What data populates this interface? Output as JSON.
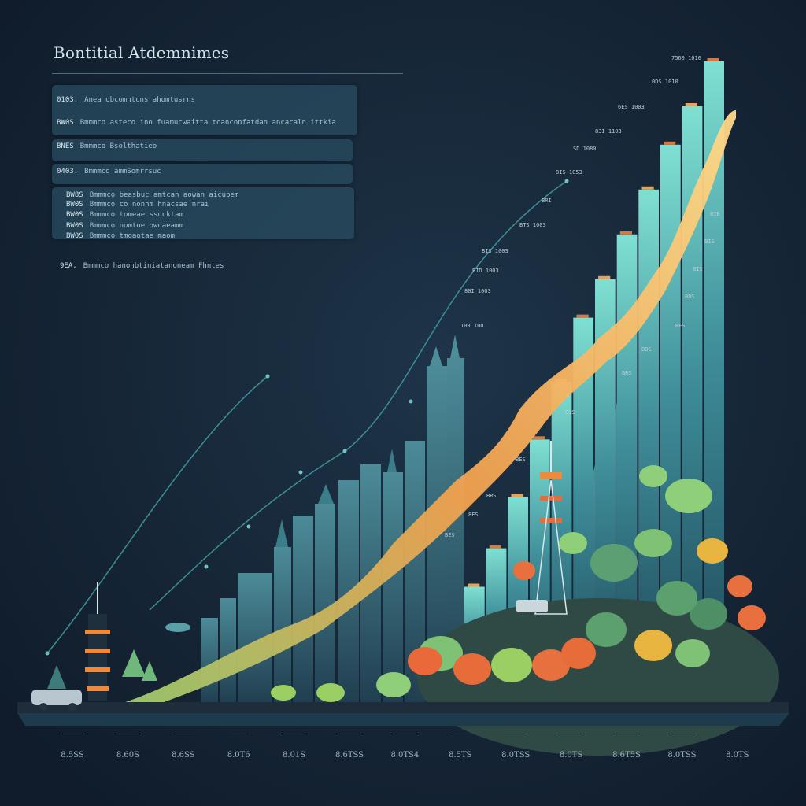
{
  "title": "Bontitial Atdemnimes",
  "panel_lines": [
    {
      "code": "0103.",
      "text": "Anea obcomntcns  ahomtusrns"
    },
    {
      "code": "BW0S",
      "text": "Bmmmco asteco ino fuamucwaitta toanconfatdan ancacaln ittkia"
    },
    {
      "code": "BNES",
      "text": "Bmmmco  Bsolthatieo"
    },
    {
      "code": "0403.",
      "text": "Bmmmco ammSomrrsuc"
    },
    {
      "code": "BW8S",
      "text": "Bmmmco  beasbuc  amtcan aowan aicubem"
    },
    {
      "code": "BW0S",
      "text": "Bmmmco  co  nonhm hnacsae nrai"
    },
    {
      "code": "BW0S",
      "text": "Bmmmco  tomeae  ssucktam"
    },
    {
      "code": "BW0S",
      "text": "Bmmmco  nomtoe  ownaeamm"
    },
    {
      "code": "BW0S",
      "text": "Bmmmco  tmoaotae  maom"
    },
    {
      "code": "9EA.",
      "text": "Bmmmco hanonbtiniatanoneam Fhntes"
    }
  ],
  "x_axis_labels": [
    "8.5SS",
    "8.60S",
    "8.6SS",
    "8.0T6",
    "8.01S",
    "8.6TSS",
    "8.0TS4",
    "8.5TS",
    "8.0TSS",
    "8.0TS",
    "8.6T5S",
    "8.0TSS",
    "8.0TS"
  ],
  "bar_labels": [
    "7560 1010",
    "0DS 1010",
    "6ES 1003",
    "83I 1103",
    "SD 1080",
    "8IS 1053",
    "BRI",
    "BTS 1003",
    "BIS 1003",
    "BID 1003",
    "80I 1003",
    "100 100"
  ],
  "right_labels": [
    "BIB",
    "BIS",
    "BIS",
    "BDS",
    "BES",
    "BDS",
    "BRS",
    "BIS",
    "BES",
    "BRS",
    "8ES",
    "BES"
  ],
  "chart_data": {
    "type": "bar",
    "title": "Bontitial Atdemnimes",
    "xlabel": "",
    "ylabel": "",
    "categories": [
      "8.5SS",
      "8.60S",
      "8.6SS",
      "8.0T6",
      "8.01S",
      "8.6TSS",
      "8.0TS4",
      "8.5TS",
      "8.0TSS",
      "8.0TS",
      "8.6T5S",
      "8.0TSS",
      "8.0TS"
    ],
    "values": [
      12,
      18,
      24,
      32,
      41,
      50,
      60,
      66,
      73,
      80,
      87,
      93,
      100
    ],
    "ylim": [
      0,
      100
    ],
    "grid": false,
    "legend": "none"
  },
  "colors": {
    "background": "#16253a",
    "bar_top": "#7fe0d2",
    "bar_bottom": "#1f4c5e",
    "ribbon_top": "#ffd380",
    "ribbon_bottom": "#a6cf6a",
    "trend_line": "#4aa9a7",
    "accent_orange": "#e86b3a"
  }
}
